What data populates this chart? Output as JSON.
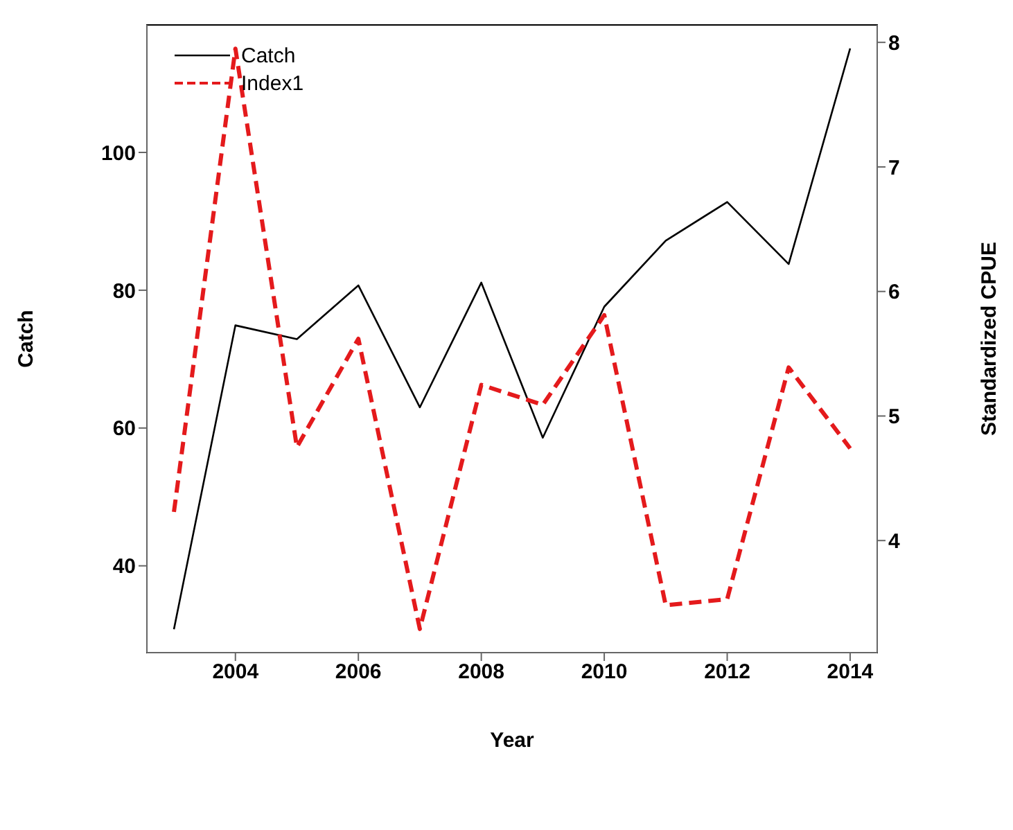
{
  "chart_data": {
    "type": "line",
    "xlabel": "Year",
    "ylabel": "Catch",
    "y2label": "Standardized CPUE",
    "x": [
      2003,
      2004,
      2005,
      2006,
      2007,
      2008,
      2009,
      2010,
      2011,
      2012,
      2013,
      2014
    ],
    "series": [
      {
        "name": "Catch",
        "color": "#000000",
        "line_style": "solid",
        "values": [
          30.8,
          74.9,
          72.9,
          80.7,
          63.0,
          81.1,
          58.6,
          77.6,
          87.2,
          92.8,
          83.8,
          115.1
        ]
      },
      {
        "name": "Index1",
        "color": "#e41a1c",
        "line_style": "dashed",
        "axis": "y2",
        "values": [
          4.23,
          7.95,
          4.75,
          5.62,
          3.29,
          5.25,
          5.09,
          5.81,
          3.48,
          3.53,
          5.39,
          4.74
        ]
      }
    ],
    "xlim": [
      2002.56,
      2014.44
    ],
    "xticks": [
      2004,
      2006,
      2008,
      2010,
      2012,
      2014
    ],
    "ylim": [
      27.4,
      118.5
    ],
    "yticks": [
      40,
      60,
      80,
      100
    ],
    "y2lim": [
      3.1,
      8.14
    ],
    "y2ticks": [
      4,
      5,
      6,
      7,
      8
    ],
    "legend": "top left",
    "grid": false,
    "marker": "none"
  }
}
